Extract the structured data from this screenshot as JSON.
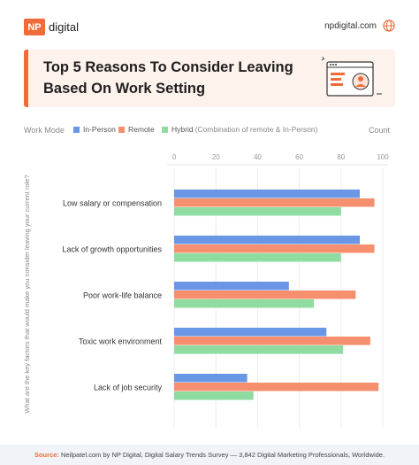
{
  "brand": {
    "logo_mark": "NP",
    "logo_word": "digital",
    "site": "npdigital.com",
    "accent_color": "#ef6b3a"
  },
  "title": {
    "line1": "Top 5 Reasons To Consider Leaving",
    "line2": "Based On Work Setting"
  },
  "legend": {
    "label": "Work Mode",
    "items": [
      {
        "name": "In-Person",
        "color": "#6a96e6"
      },
      {
        "name": "Remote",
        "color": "#f58f6e"
      },
      {
        "name": "Hybrid",
        "color": "#8fdca0",
        "note": "(Combination of remote & In-Person)"
      }
    ],
    "count_label": "Count"
  },
  "chart_data": {
    "type": "bar",
    "orientation": "horizontal",
    "title": "Top 5 Reasons To Consider Leaving Based On Work Setting",
    "xlabel": "Count",
    "ylabel": "What are the key factors that would make you consider leaving your current role?",
    "xlim": [
      0,
      100
    ],
    "x_ticks": [
      0,
      20,
      40,
      60,
      80,
      100
    ],
    "grid": true,
    "categories": [
      "Low salary or compensation",
      "Lack of growth opportunities",
      "Poor work-life balance",
      "Toxic work environment",
      "Lack of job security"
    ],
    "series": [
      {
        "name": "In-Person",
        "color": "#6a96e6",
        "values": [
          89,
          89,
          55,
          73,
          35
        ]
      },
      {
        "name": "Remote",
        "color": "#f58f6e",
        "values": [
          96,
          96,
          87,
          94,
          98
        ]
      },
      {
        "name": "Hybrid",
        "color": "#8fdca0",
        "values": [
          80,
          80,
          67,
          81,
          38
        ]
      }
    ]
  },
  "footer": {
    "source_label": "Source:",
    "source_text": "Neilpatel.com by NP Digital, Digital Salary Trends Survey — 3,842 Digital Marketing Professionals, Worldwide."
  }
}
